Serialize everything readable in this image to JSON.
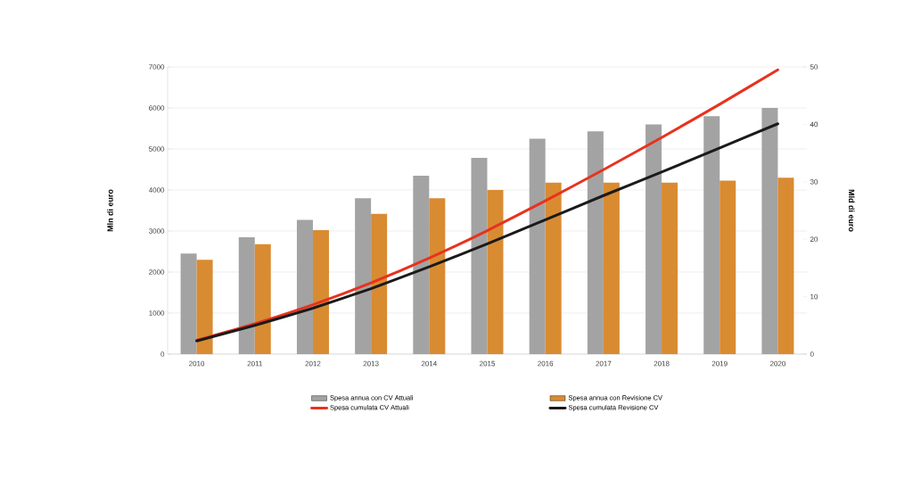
{
  "chart_data": {
    "type": "bar",
    "categories": [
      "2010",
      "2011",
      "2012",
      "2013",
      "2014",
      "2015",
      "2016",
      "2017",
      "2018",
      "2019",
      "2020"
    ],
    "series": [
      {
        "name": "Spesa annua con CV Attuali",
        "color": "#a3a3a3",
        "values": [
          2450,
          2850,
          3270,
          3800,
          4350,
          4780,
          5250,
          5430,
          5600,
          5800,
          6000
        ]
      },
      {
        "name": "Spesa annua con Revisione CV",
        "color": "#d98b32",
        "values": [
          2300,
          2680,
          3020,
          3420,
          3800,
          4000,
          4180,
          4180,
          4180,
          4230,
          4300
        ]
      },
      {
        "name": "Spesa cumulata CV Attuali",
        "type": "line",
        "axis": "y2",
        "color": "#e8321e",
        "values": [
          2.4,
          5.3,
          8.6,
          12.4,
          16.7,
          21.5,
          26.7,
          32.1,
          37.7,
          43.5,
          49.5
        ]
      },
      {
        "name": "Spesa cumulata Revisione CV",
        "type": "line",
        "axis": "y2",
        "color": "#1a1a1a",
        "values": [
          2.3,
          5.0,
          8.0,
          11.4,
          15.2,
          19.2,
          23.4,
          27.6,
          31.7,
          35.9,
          40.1
        ]
      }
    ],
    "ylabel": "Mln di euro",
    "y2label": "Mld di euro",
    "ylim": [
      0,
      7000
    ],
    "yticks": [
      0,
      1000,
      2000,
      3000,
      4000,
      5000,
      6000,
      7000
    ],
    "y2lim": [
      0,
      50
    ],
    "y2ticks": [
      0,
      10,
      20,
      30,
      40,
      50
    ],
    "grid": "y",
    "legend": "bottom"
  }
}
